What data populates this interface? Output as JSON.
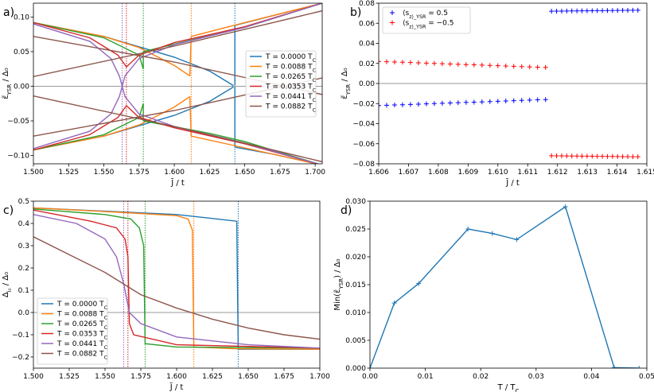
{
  "chart_data": [
    {
      "panel": "a)",
      "type": "line",
      "xlabel": "J̃ / t",
      "ylabel": "ε̃_YSR / Δ₀",
      "xlim": [
        1.5,
        1.705
      ],
      "ylim": [
        -0.112,
        0.12
      ],
      "xticks": [
        "1.500",
        "1.525",
        "1.550",
        "1.575",
        "1.600",
        "1.625",
        "1.650",
        "1.675",
        "1.700"
      ],
      "yticks": [
        {
          "v": -0.1,
          "t": "−0.10"
        },
        {
          "v": -0.05,
          "t": "−0.05"
        },
        {
          "v": 0.0,
          "t": "0.00"
        },
        {
          "v": 0.05,
          "t": "0.05"
        },
        {
          "v": 0.1,
          "t": "0.10"
        }
      ],
      "legend": "center-right",
      "series": [
        {
          "name": "T = 0.0000 T_C",
          "color": "#1f77b4",
          "Jc": 1.643,
          "branches": [
            [
              [
                1.5,
                0.092
              ],
              [
                1.55,
                0.072
              ],
              [
                1.6,
                0.042
              ],
              [
                1.625,
                0.022
              ],
              [
                1.642,
                0.001
              ]
            ],
            [
              [
                1.5,
                -0.092
              ],
              [
                1.55,
                -0.072
              ],
              [
                1.6,
                -0.042
              ],
              [
                1.625,
                -0.022
              ],
              [
                1.642,
                -0.001
              ]
            ],
            [
              [
                1.643,
                0.001
              ],
              [
                1.643,
                0.088
              ]
            ],
            [
              [
                1.643,
                -0.001
              ],
              [
                1.643,
                -0.088
              ]
            ],
            [
              [
                1.643,
                0.088
              ],
              [
                1.67,
                0.102
              ],
              [
                1.705,
                0.12
              ]
            ],
            [
              [
                1.643,
                -0.088
              ],
              [
                1.67,
                -0.098
              ],
              [
                1.705,
                -0.114
              ]
            ]
          ]
        },
        {
          "name": "T = 0.0088 T_C",
          "color": "#ff7f0e",
          "Jc": 1.612,
          "branches": [
            [
              [
                1.5,
                0.092
              ],
              [
                1.55,
                0.072
              ],
              [
                1.575,
                0.056
              ],
              [
                1.6,
                0.03
              ],
              [
                1.611,
                0.015
              ]
            ],
            [
              [
                1.5,
                -0.092
              ],
              [
                1.55,
                -0.072
              ],
              [
                1.575,
                -0.056
              ],
              [
                1.6,
                -0.03
              ],
              [
                1.611,
                -0.015
              ]
            ],
            [
              [
                1.611,
                0.015
              ],
              [
                1.612,
                0.072
              ]
            ],
            [
              [
                1.611,
                -0.015
              ],
              [
                1.612,
                -0.072
              ]
            ],
            [
              [
                1.612,
                0.072
              ],
              [
                1.65,
                0.092
              ],
              [
                1.705,
                0.12
              ]
            ],
            [
              [
                1.612,
                -0.072
              ],
              [
                1.65,
                -0.089
              ],
              [
                1.705,
                -0.114
              ]
            ]
          ]
        },
        {
          "name": "T = 0.0265 T_C",
          "color": "#2ca02c",
          "Jc": 1.578,
          "branches": [
            [
              [
                1.5,
                0.092
              ],
              [
                1.55,
                0.07
              ],
              [
                1.575,
                0.045
              ],
              [
                1.578,
                0.025
              ]
            ],
            [
              [
                1.5,
                -0.092
              ],
              [
                1.55,
                -0.07
              ],
              [
                1.575,
                -0.045
              ],
              [
                1.578,
                -0.025
              ]
            ],
            [
              [
                1.578,
                0.025
              ],
              [
                1.578,
                0.05
              ]
            ],
            [
              [
                1.578,
                -0.025
              ],
              [
                1.578,
                -0.05
              ]
            ],
            [
              [
                1.578,
                0.05
              ],
              [
                1.625,
                0.073
              ],
              [
                1.65,
                0.085
              ],
              [
                1.705,
                0.12
              ]
            ],
            [
              [
                1.578,
                -0.05
              ],
              [
                1.625,
                -0.068
              ],
              [
                1.65,
                -0.08
              ],
              [
                1.705,
                -0.114
              ]
            ]
          ]
        },
        {
          "name": "T = 0.0353 T_C",
          "color": "#d62728",
          "Jc": 1.566,
          "branches": [
            [
              [
                1.5,
                0.092
              ],
              [
                1.54,
                0.07
              ],
              [
                1.56,
                0.045
              ],
              [
                1.566,
                0.028
              ],
              [
                1.575,
                0.045
              ],
              [
                1.6,
                0.063
              ],
              [
                1.65,
                0.086
              ],
              [
                1.705,
                0.12
              ]
            ],
            [
              [
                1.5,
                -0.092
              ],
              [
                1.54,
                -0.07
              ],
              [
                1.56,
                -0.045
              ],
              [
                1.566,
                -0.028
              ],
              [
                1.575,
                -0.045
              ],
              [
                1.6,
                -0.06
              ],
              [
                1.65,
                -0.083
              ],
              [
                1.705,
                -0.114
              ]
            ]
          ]
        },
        {
          "name": "T = 0.0441 T_C",
          "color": "#9467bd",
          "Jc": 1.563,
          "branches": [
            [
              [
                1.5,
                0.09
              ],
              [
                1.54,
                0.065
              ],
              [
                1.555,
                0.04
              ],
              [
                1.561,
                0.015
              ],
              [
                1.563,
                0
              ],
              [
                1.565,
                0.015
              ],
              [
                1.575,
                0.04
              ],
              [
                1.6,
                0.06
              ],
              [
                1.65,
                0.085
              ],
              [
                1.705,
                0.12
              ]
            ],
            [
              [
                1.5,
                -0.09
              ],
              [
                1.54,
                -0.065
              ],
              [
                1.555,
                -0.04
              ],
              [
                1.561,
                -0.015
              ],
              [
                1.563,
                0
              ],
              [
                1.565,
                -0.015
              ],
              [
                1.575,
                -0.04
              ],
              [
                1.6,
                -0.058
              ],
              [
                1.65,
                -0.082
              ],
              [
                1.705,
                -0.114
              ]
            ]
          ]
        },
        {
          "name": "T = 0.0882 T_C",
          "color": "#8c564b",
          "Jc": null,
          "branches": [
            [
              [
                1.5,
                0.072
              ],
              [
                1.6,
                0.035
              ],
              [
                1.705,
                -0.012
              ]
            ],
            [
              [
                1.5,
                -0.072
              ],
              [
                1.6,
                -0.035
              ],
              [
                1.705,
                0.012
              ]
            ],
            [
              [
                1.5,
                0.014
              ],
              [
                1.6,
                0.058
              ],
              [
                1.705,
                0.109
              ]
            ],
            [
              [
                1.5,
                -0.014
              ],
              [
                1.6,
                -0.058
              ],
              [
                1.705,
                -0.109
              ]
            ]
          ]
        }
      ]
    },
    {
      "panel": "b)",
      "type": "scatter",
      "xlabel": "J̃ / t",
      "ylabel": "ε̃_YSR / Δ₀",
      "xlim": [
        1.606,
        1.615
      ],
      "ylim": [
        -0.08,
        0.08
      ],
      "xticks": [
        "1.606",
        "1.607",
        "1.608",
        "1.609",
        "1.610",
        "1.611",
        "1.612",
        "1.613",
        "1.614",
        "1.615"
      ],
      "yticks": [
        {
          "v": -0.08,
          "t": "−0.08"
        },
        {
          "v": -0.06,
          "t": "−0.06"
        },
        {
          "v": -0.04,
          "t": "−0.04"
        },
        {
          "v": -0.02,
          "t": "−0.02"
        },
        {
          "v": 0.0,
          "t": "0.00"
        },
        {
          "v": 0.02,
          "t": "0.02"
        },
        {
          "v": 0.04,
          "t": "0.04"
        },
        {
          "v": 0.06,
          "t": "0.06"
        },
        {
          "v": 0.08,
          "t": "0.08"
        }
      ],
      "legend": "top-left",
      "series": [
        {
          "name": "⟨s_z⟩_YSR = 0.5",
          "color": "#0000ff",
          "segments": [
            {
              "x0": 1.606,
              "x1": 1.6116,
              "y0": -0.022,
              "y1": -0.016,
              "n": 22
            },
            {
              "x0": 1.6118,
              "x1": 1.6147,
              "y0": 0.072,
              "y1": 0.073,
              "n": 18
            }
          ]
        },
        {
          "name": "⟨s_z⟩_YSR = −0.5",
          "color": "#ff0000",
          "segments": [
            {
              "x0": 1.606,
              "x1": 1.6116,
              "y0": 0.022,
              "y1": 0.016,
              "n": 22
            },
            {
              "x0": 1.6118,
              "x1": 1.6147,
              "y0": -0.072,
              "y1": -0.073,
              "n": 18
            }
          ]
        }
      ]
    },
    {
      "panel": "c)",
      "type": "line",
      "xlabel": "J̃ / t",
      "ylabel": "Δ_i₀ / Δ₀",
      "xlim": [
        1.5,
        1.7
      ],
      "ylim": [
        -0.25,
        0.5
      ],
      "xticks": [
        "1.500",
        "1.525",
        "1.550",
        "1.575",
        "1.600",
        "1.625",
        "1.650",
        "1.675",
        "1.700"
      ],
      "yticks": [
        {
          "v": -0.2,
          "t": "−0.2"
        },
        {
          "v": -0.1,
          "t": "−0.1"
        },
        {
          "v": 0.0,
          "t": "0.0"
        },
        {
          "v": 0.1,
          "t": "0.1"
        },
        {
          "v": 0.2,
          "t": "0.2"
        },
        {
          "v": 0.3,
          "t": "0.3"
        },
        {
          "v": 0.4,
          "t": "0.4"
        },
        {
          "v": 0.5,
          "t": "0.5"
        }
      ],
      "legend": "bottom-left",
      "series": [
        {
          "name": "T = 0.0000 T_C",
          "color": "#1f77b4",
          "Jc": 1.643,
          "points": [
            [
              1.5,
              0.47
            ],
            [
              1.6,
              0.44
            ],
            [
              1.642,
              0.41
            ],
            [
              1.643,
              -0.165
            ],
            [
              1.7,
              -0.165
            ]
          ]
        },
        {
          "name": "T = 0.0088 T_C",
          "color": "#ff7f0e",
          "Jc": 1.612,
          "points": [
            [
              1.5,
              0.47
            ],
            [
              1.56,
              0.45
            ],
            [
              1.6,
              0.435
            ],
            [
              1.608,
              0.42
            ],
            [
              1.611,
              0.37
            ],
            [
              1.612,
              -0.155
            ],
            [
              1.64,
              -0.163
            ],
            [
              1.7,
              -0.165
            ]
          ]
        },
        {
          "name": "T = 0.0265 T_C",
          "color": "#2ca02c",
          "Jc": 1.578,
          "points": [
            [
              1.5,
              0.465
            ],
            [
              1.55,
              0.44
            ],
            [
              1.568,
              0.42
            ],
            [
              1.574,
              0.38
            ],
            [
              1.577,
              0.3
            ],
            [
              1.578,
              -0.14
            ],
            [
              1.6,
              -0.155
            ],
            [
              1.7,
              -0.16
            ]
          ]
        },
        {
          "name": "T = 0.0353 T_C",
          "color": "#d62728",
          "Jc": 1.566,
          "points": [
            [
              1.5,
              0.46
            ],
            [
              1.54,
              0.41
            ],
            [
              1.558,
              0.38
            ],
            [
              1.564,
              0.33
            ],
            [
              1.566,
              0.25
            ],
            [
              1.567,
              -0.05
            ],
            [
              1.57,
              -0.1
            ],
            [
              1.6,
              -0.145
            ],
            [
              1.7,
              -0.16
            ]
          ]
        },
        {
          "name": "T = 0.0441 T_C",
          "color": "#9467bd",
          "Jc": 1.563,
          "points": [
            [
              1.5,
              0.44
            ],
            [
              1.53,
              0.4
            ],
            [
              1.55,
              0.33
            ],
            [
              1.558,
              0.25
            ],
            [
              1.563,
              0.13
            ],
            [
              1.567,
              0
            ],
            [
              1.575,
              -0.05
            ],
            [
              1.6,
              -0.11
            ],
            [
              1.65,
              -0.145
            ],
            [
              1.7,
              -0.16
            ]
          ]
        },
        {
          "name": "T = 0.0882 T_C",
          "color": "#8c564b",
          "Jc": null,
          "points": [
            [
              1.5,
              0.34
            ],
            [
              1.525,
              0.26
            ],
            [
              1.55,
              0.18
            ],
            [
              1.575,
              0.08
            ],
            [
              1.6,
              0.02
            ],
            [
              1.625,
              -0.03
            ],
            [
              1.65,
              -0.07
            ],
            [
              1.675,
              -0.1
            ],
            [
              1.7,
              -0.12
            ]
          ]
        }
      ]
    },
    {
      "panel": "d)",
      "type": "line",
      "xlabel": "T / T_C",
      "ylabel": "Min(ε̃_YSR) / Δ₀",
      "xlim": [
        0.0,
        0.05
      ],
      "ylim": [
        0.0,
        0.03
      ],
      "xticks": [
        "0.00",
        "0.01",
        "0.02",
        "0.03",
        "0.04",
        "0.05"
      ],
      "yticks": [
        "0.000",
        "0.005",
        "0.010",
        "0.015",
        "0.020",
        "0.025",
        "0.030"
      ],
      "series": [
        {
          "name": "",
          "color": "#1f77b4",
          "x": [
            0.0,
            0.0044,
            0.0088,
            0.0177,
            0.0221,
            0.0265,
            0.0353,
            0.0441,
            0.0486
          ],
          "y": [
            0.0,
            0.0117,
            0.0152,
            0.025,
            0.0242,
            0.0231,
            0.029,
            0.0001,
            0.0
          ]
        }
      ]
    }
  ]
}
